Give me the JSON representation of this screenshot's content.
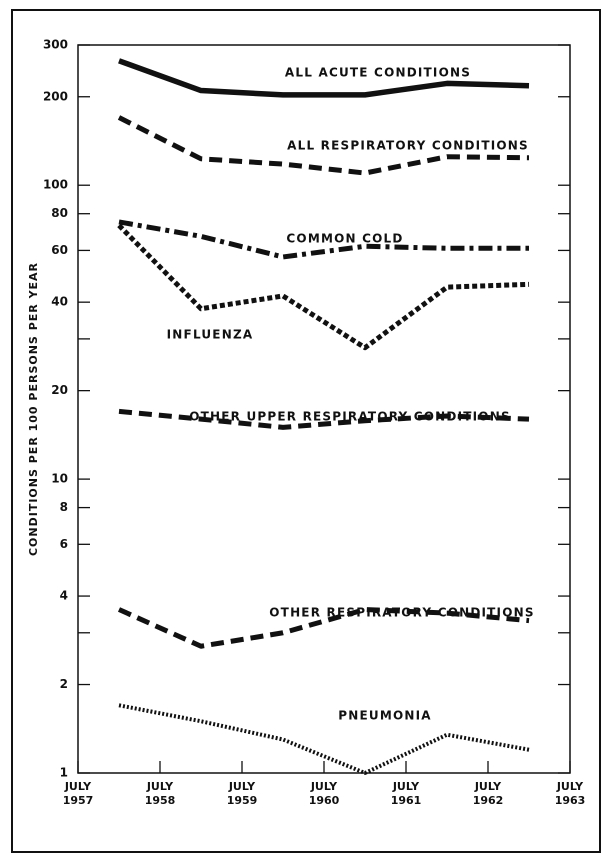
{
  "chart_data": {
    "type": "line",
    "ylabel": "CONDITIONS PER 100 PERSONS PER YEAR",
    "log_scale": true,
    "ylim": [
      1,
      300
    ],
    "yticks": [
      1,
      2,
      4,
      6,
      8,
      10,
      20,
      40,
      60,
      80,
      100,
      200,
      300
    ],
    "yminor": [
      3,
      30
    ],
    "xlim": [
      1957.5,
      1963.5
    ],
    "x_tick_month": "JULY",
    "xticks": [
      {
        "value": 1957.5,
        "label": "1957"
      },
      {
        "value": 1958.5,
        "label": "1958"
      },
      {
        "value": 1959.5,
        "label": "1959"
      },
      {
        "value": 1960.5,
        "label": "1960"
      },
      {
        "value": 1961.5,
        "label": "1961"
      },
      {
        "value": 1962.5,
        "label": "1962"
      },
      {
        "value": 1963.5,
        "label": "1963"
      }
    ],
    "x": [
      1958,
      1959,
      1960,
      1961,
      1962,
      1963
    ],
    "series": [
      {
        "name": "ALL ACUTE CONDITIONS",
        "color": "#111111",
        "dash": "solid",
        "values": [
          265,
          210,
          203,
          203,
          222,
          218
        ]
      },
      {
        "name": "ALL RESPIRATORY CONDITIONS",
        "color": "#111111",
        "dash": "dashed",
        "values": [
          170,
          123,
          118,
          110,
          125,
          124
        ]
      },
      {
        "name": "COMMON COLD",
        "color": "#111111",
        "dash": "dashdot",
        "values": [
          75,
          67,
          57,
          62,
          61,
          61
        ]
      },
      {
        "name": "INFLUENZA",
        "color": "#111111",
        "dash": "shortdash",
        "values": [
          73,
          38,
          42,
          28,
          45,
          46
        ]
      },
      {
        "name": "OTHER UPPER RESPIRATORY CONDITIONS",
        "color": "#111111",
        "dash": "dashed",
        "values": [
          17,
          16,
          15,
          15.8,
          16.4,
          16
        ]
      },
      {
        "name": "OTHER RESPIRATORY CONDITIONS",
        "color": "#111111",
        "dash": "dashed",
        "values": [
          3.6,
          2.7,
          3.0,
          3.6,
          3.5,
          3.3
        ]
      },
      {
        "name": "PNEUMONIA",
        "color": "#111111",
        "dash": "dotted",
        "values": [
          1.7,
          1.5,
          1.3,
          1.0,
          1.35,
          1.2
        ]
      }
    ]
  }
}
